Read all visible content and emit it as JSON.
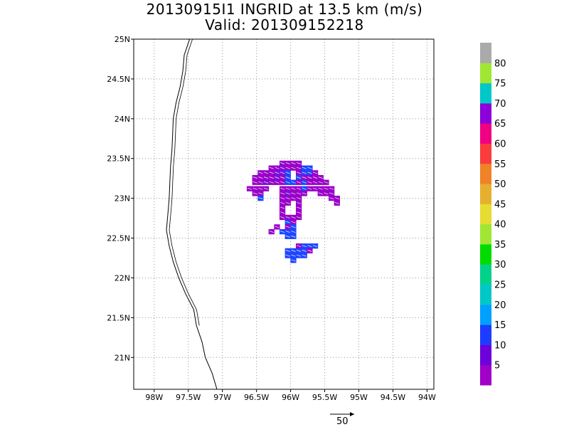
{
  "title": {
    "line1": "20130915I1 INGRID at 13.5 km (m/s)",
    "line2": "Valid: 201309152218"
  },
  "chart_data": {
    "type": "heatmap",
    "lon_range": [
      -98.3,
      -93.9
    ],
    "lat_range": [
      20.6,
      25.0
    ],
    "x_ticks": [
      "98W",
      "97.5W",
      "97W",
      "96.5W",
      "96W",
      "95.5W",
      "95W",
      "94.5W",
      "94W"
    ],
    "x_tick_values": [
      -98,
      -97.5,
      -97,
      -96.5,
      -96,
      -95.5,
      -95,
      -94.5,
      -94
    ],
    "y_ticks": [
      "21N",
      "21.5N",
      "22N",
      "22.5N",
      "23N",
      "23.5N",
      "24N",
      "24.5N",
      "25N"
    ],
    "y_tick_values": [
      21,
      21.5,
      22,
      22.5,
      23,
      23.5,
      24,
      24.5,
      25
    ],
    "grid": true,
    "colorbar": {
      "labels": [
        "5",
        "10",
        "15",
        "20",
        "25",
        "30",
        "35",
        "40",
        "45",
        "50",
        "55",
        "60",
        "65",
        "70",
        "75",
        "80"
      ],
      "colors": [
        "#a000c8",
        "#6e00dc",
        "#1e3cff",
        "#00a0ff",
        "#00c8c8",
        "#00d28c",
        "#00dc00",
        "#a0e632",
        "#e6dc32",
        "#e6af2d",
        "#f08228",
        "#fa3c3c",
        "#f00082",
        "#8c00dc",
        "#00c8c8",
        "#a0e632",
        "#aaaaaa"
      ]
    },
    "cells": [
      {
        "lon": -96.12,
        "lat": 23.44,
        "v": 3
      },
      {
        "lon": -96.04,
        "lat": 23.44,
        "v": 3
      },
      {
        "lon": -95.96,
        "lat": 23.44,
        "v": 3
      },
      {
        "lon": -95.88,
        "lat": 23.44,
        "v": 3
      },
      {
        "lon": -96.28,
        "lat": 23.38,
        "v": 3
      },
      {
        "lon": -96.2,
        "lat": 23.38,
        "v": 3
      },
      {
        "lon": -96.12,
        "lat": 23.38,
        "v": 8
      },
      {
        "lon": -96.04,
        "lat": 23.38,
        "v": 3
      },
      {
        "lon": -95.96,
        "lat": 23.38,
        "v": 3
      },
      {
        "lon": -95.88,
        "lat": 23.38,
        "v": 3
      },
      {
        "lon": -95.8,
        "lat": 23.38,
        "v": 12
      },
      {
        "lon": -95.72,
        "lat": 23.38,
        "v": 12
      },
      {
        "lon": -96.44,
        "lat": 23.32,
        "v": 3
      },
      {
        "lon": -96.36,
        "lat": 23.32,
        "v": 3
      },
      {
        "lon": -96.28,
        "lat": 23.32,
        "v": 3
      },
      {
        "lon": -96.2,
        "lat": 23.32,
        "v": 8
      },
      {
        "lon": -96.12,
        "lat": 23.32,
        "v": 8
      },
      {
        "lon": -96.04,
        "lat": 23.32,
        "v": 12
      },
      {
        "lon": -95.88,
        "lat": 23.32,
        "v": 3
      },
      {
        "lon": -95.8,
        "lat": 23.32,
        "v": 12
      },
      {
        "lon": -95.72,
        "lat": 23.32,
        "v": 12
      },
      {
        "lon": -95.64,
        "lat": 23.32,
        "v": 3
      },
      {
        "lon": -96.52,
        "lat": 23.26,
        "v": 3
      },
      {
        "lon": -96.44,
        "lat": 23.26,
        "v": 3
      },
      {
        "lon": -96.36,
        "lat": 23.26,
        "v": 3
      },
      {
        "lon": -96.28,
        "lat": 23.26,
        "v": 3
      },
      {
        "lon": -96.2,
        "lat": 23.26,
        "v": 8
      },
      {
        "lon": -96.12,
        "lat": 23.26,
        "v": 3
      },
      {
        "lon": -96.04,
        "lat": 23.26,
        "v": 12
      },
      {
        "lon": -95.88,
        "lat": 23.26,
        "v": 12
      },
      {
        "lon": -95.8,
        "lat": 23.26,
        "v": 3
      },
      {
        "lon": -95.72,
        "lat": 23.26,
        "v": 3
      },
      {
        "lon": -95.64,
        "lat": 23.26,
        "v": 3
      },
      {
        "lon": -95.56,
        "lat": 23.26,
        "v": 3
      },
      {
        "lon": -96.52,
        "lat": 23.2,
        "v": 3
      },
      {
        "lon": -96.44,
        "lat": 23.2,
        "v": 3
      },
      {
        "lon": -96.36,
        "lat": 23.2,
        "v": 8
      },
      {
        "lon": -96.28,
        "lat": 23.2,
        "v": 3
      },
      {
        "lon": -96.2,
        "lat": 23.2,
        "v": 3
      },
      {
        "lon": -96.12,
        "lat": 23.2,
        "v": 3
      },
      {
        "lon": -96.04,
        "lat": 23.2,
        "v": 12
      },
      {
        "lon": -95.96,
        "lat": 23.2,
        "v": 12
      },
      {
        "lon": -95.88,
        "lat": 23.2,
        "v": 3
      },
      {
        "lon": -95.8,
        "lat": 23.2,
        "v": 12
      },
      {
        "lon": -95.72,
        "lat": 23.2,
        "v": 3
      },
      {
        "lon": -95.64,
        "lat": 23.2,
        "v": 3
      },
      {
        "lon": -95.56,
        "lat": 23.2,
        "v": 3
      },
      {
        "lon": -95.48,
        "lat": 23.2,
        "v": 3
      },
      {
        "lon": -96.6,
        "lat": 23.12,
        "v": 3
      },
      {
        "lon": -96.52,
        "lat": 23.12,
        "v": 3
      },
      {
        "lon": -96.44,
        "lat": 23.12,
        "v": 3
      },
      {
        "lon": -96.36,
        "lat": 23.12,
        "v": 3
      },
      {
        "lon": -96.12,
        "lat": 23.12,
        "v": 3
      },
      {
        "lon": -96.04,
        "lat": 23.12,
        "v": 3
      },
      {
        "lon": -95.96,
        "lat": 23.12,
        "v": 3
      },
      {
        "lon": -95.88,
        "lat": 23.12,
        "v": 3
      },
      {
        "lon": -95.8,
        "lat": 23.12,
        "v": 12
      },
      {
        "lon": -95.72,
        "lat": 23.12,
        "v": 3
      },
      {
        "lon": -95.64,
        "lat": 23.12,
        "v": 3
      },
      {
        "lon": -95.56,
        "lat": 23.12,
        "v": 3
      },
      {
        "lon": -95.48,
        "lat": 23.12,
        "v": 3
      },
      {
        "lon": -95.4,
        "lat": 23.12,
        "v": 3
      },
      {
        "lon": -96.52,
        "lat": 23.06,
        "v": 3
      },
      {
        "lon": -96.44,
        "lat": 23.06,
        "v": 3
      },
      {
        "lon": -96.12,
        "lat": 23.06,
        "v": 3
      },
      {
        "lon": -96.04,
        "lat": 23.06,
        "v": 8
      },
      {
        "lon": -95.96,
        "lat": 23.06,
        "v": 3
      },
      {
        "lon": -95.88,
        "lat": 23.06,
        "v": 3
      },
      {
        "lon": -95.8,
        "lat": 23.06,
        "v": 3
      },
      {
        "lon": -95.56,
        "lat": 23.06,
        "v": 3
      },
      {
        "lon": -95.48,
        "lat": 23.06,
        "v": 3
      },
      {
        "lon": -95.4,
        "lat": 23.06,
        "v": 3
      },
      {
        "lon": -96.44,
        "lat": 23.0,
        "v": 12
      },
      {
        "lon": -96.12,
        "lat": 23.0,
        "v": 3
      },
      {
        "lon": -96.04,
        "lat": 23.0,
        "v": 3
      },
      {
        "lon": -95.96,
        "lat": 23.0,
        "v": 3
      },
      {
        "lon": -95.88,
        "lat": 23.0,
        "v": 3
      },
      {
        "lon": -95.4,
        "lat": 23.0,
        "v": 3
      },
      {
        "lon": -95.32,
        "lat": 23.0,
        "v": 3
      },
      {
        "lon": -96.12,
        "lat": 22.94,
        "v": 3
      },
      {
        "lon": -96.04,
        "lat": 22.94,
        "v": 3
      },
      {
        "lon": -95.88,
        "lat": 22.94,
        "v": 3
      },
      {
        "lon": -95.32,
        "lat": 22.94,
        "v": 3
      },
      {
        "lon": -96.12,
        "lat": 22.88,
        "v": 3
      },
      {
        "lon": -95.88,
        "lat": 22.88,
        "v": 3
      },
      {
        "lon": -96.12,
        "lat": 22.82,
        "v": 3
      },
      {
        "lon": -95.88,
        "lat": 22.82,
        "v": 3
      },
      {
        "lon": -96.12,
        "lat": 22.76,
        "v": 3
      },
      {
        "lon": -96.04,
        "lat": 22.76,
        "v": 3
      },
      {
        "lon": -95.96,
        "lat": 22.76,
        "v": 3
      },
      {
        "lon": -95.88,
        "lat": 22.76,
        "v": 3
      },
      {
        "lon": -96.04,
        "lat": 22.7,
        "v": 12
      },
      {
        "lon": -95.96,
        "lat": 22.7,
        "v": 3
      },
      {
        "lon": -96.2,
        "lat": 22.64,
        "v": 3
      },
      {
        "lon": -96.04,
        "lat": 22.64,
        "v": 3
      },
      {
        "lon": -95.96,
        "lat": 22.64,
        "v": 12
      },
      {
        "lon": -96.28,
        "lat": 22.58,
        "v": 3
      },
      {
        "lon": -96.12,
        "lat": 22.58,
        "v": 12
      },
      {
        "lon": -96.04,
        "lat": 22.58,
        "v": 12
      },
      {
        "lon": -95.96,
        "lat": 22.58,
        "v": 12
      },
      {
        "lon": -96.04,
        "lat": 22.52,
        "v": 12
      },
      {
        "lon": -95.96,
        "lat": 22.52,
        "v": 12
      },
      {
        "lon": -95.88,
        "lat": 22.4,
        "v": 3
      },
      {
        "lon": -95.8,
        "lat": 22.4,
        "v": 12
      },
      {
        "lon": -95.72,
        "lat": 22.4,
        "v": 12
      },
      {
        "lon": -95.64,
        "lat": 22.4,
        "v": 12
      },
      {
        "lon": -96.04,
        "lat": 22.34,
        "v": 12
      },
      {
        "lon": -95.96,
        "lat": 22.34,
        "v": 12
      },
      {
        "lon": -95.88,
        "lat": 22.34,
        "v": 12
      },
      {
        "lon": -95.8,
        "lat": 22.34,
        "v": 12
      },
      {
        "lon": -95.72,
        "lat": 22.34,
        "v": 3
      },
      {
        "lon": -96.04,
        "lat": 22.28,
        "v": 12
      },
      {
        "lon": -95.96,
        "lat": 22.28,
        "v": 12
      },
      {
        "lon": -95.88,
        "lat": 22.28,
        "v": 12
      },
      {
        "lon": -95.8,
        "lat": 22.28,
        "v": 12
      },
      {
        "lon": -95.96,
        "lat": 22.22,
        "v": 12
      }
    ],
    "coastline": [
      [
        -97.48,
        25.0
      ],
      [
        -97.56,
        24.8
      ],
      [
        -97.58,
        24.6
      ],
      [
        -97.62,
        24.4
      ],
      [
        -97.68,
        24.2
      ],
      [
        -97.72,
        24.0
      ],
      [
        -97.73,
        23.8
      ],
      [
        -97.74,
        23.6
      ],
      [
        -97.76,
        23.4
      ],
      [
        -97.77,
        23.2
      ],
      [
        -97.78,
        23.0
      ],
      [
        -97.8,
        22.8
      ],
      [
        -97.82,
        22.6
      ],
      [
        -97.78,
        22.4
      ],
      [
        -97.72,
        22.2
      ],
      [
        -97.64,
        22.0
      ],
      [
        -97.54,
        21.8
      ],
      [
        -97.42,
        21.6
      ],
      [
        -97.38,
        21.4
      ],
      [
        -97.3,
        21.2
      ],
      [
        -97.25,
        21.0
      ],
      [
        -97.15,
        20.8
      ],
      [
        -97.08,
        20.6
      ]
    ],
    "reference_vector": {
      "label": "50"
    }
  }
}
